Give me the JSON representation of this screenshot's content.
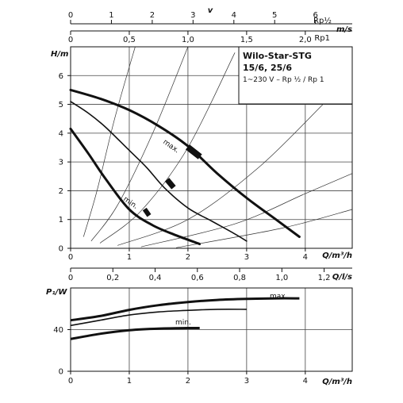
{
  "chart_data": [
    {
      "id": "velocity_scales",
      "type": "scale",
      "rp_half": {
        "label": "Rp½",
        "ticks": [
          "0",
          "1",
          "2",
          "3",
          "4",
          "5",
          "6"
        ],
        "max_value": 6.9
      },
      "rp1": {
        "label": "Rp1",
        "ticks": [
          "0",
          "0,5",
          "1,0",
          "1,5",
          "2,0"
        ],
        "tick_values": [
          0,
          0.5,
          1.0,
          1.5,
          2.0
        ],
        "max_value": 2.4
      },
      "symbol": "v",
      "unit": "m/s"
    },
    {
      "id": "pump_head_curves",
      "type": "line",
      "title": "Wilo-Star-STG",
      "subtitle": "15/6, 25/6",
      "caption": "1~230 V – Rp ½ / Rp 1",
      "ylabel": "H/m",
      "xlabel": "Q/m³/h",
      "xlim": [
        0,
        4.8
      ],
      "ylim": [
        0,
        7
      ],
      "xticks": [
        "0",
        "1",
        "2",
        "3",
        "4"
      ],
      "yticks": [
        "0",
        "1",
        "2",
        "3",
        "4",
        "5",
        "6"
      ],
      "grid": true,
      "series": [
        {
          "name": "max.",
          "x": [
            0,
            0.5,
            1,
            1.5,
            2,
            2.5,
            3,
            3.5,
            3.9
          ],
          "y": [
            5.5,
            5.2,
            4.8,
            4.25,
            3.55,
            2.6,
            1.75,
            1.0,
            0.4
          ]
        },
        {
          "name": "",
          "x": [
            0,
            0.3,
            0.6,
            1.0,
            1.3,
            1.6,
            2.0,
            2.4,
            2.8,
            3.0
          ],
          "y": [
            5.1,
            4.7,
            4.2,
            3.4,
            2.8,
            2.1,
            1.4,
            0.95,
            0.5,
            0.25
          ]
        },
        {
          "name": "min.",
          "x": [
            0,
            0.3,
            0.6,
            1.0,
            1.4,
            1.8,
            2.2
          ],
          "y": [
            4.15,
            3.3,
            2.4,
            1.35,
            0.8,
            0.45,
            0.15
          ]
        }
      ],
      "system_curves": [
        {
          "x": [
            0.22,
            0.45,
            0.75,
            1.1
          ],
          "y": [
            0.4,
            2.0,
            4.5,
            7.0
          ]
        },
        {
          "x": [
            0.35,
            0.8,
            1.4,
            2.0
          ],
          "y": [
            0.25,
            1.5,
            4.0,
            7.0
          ]
        },
        {
          "x": [
            0.5,
            1.2,
            2.0,
            2.8
          ],
          "y": [
            0.18,
            1.3,
            3.5,
            6.8
          ]
        },
        {
          "x": [
            0.8,
            2.0,
            3.2,
            4.3
          ],
          "y": [
            0.1,
            1.0,
            2.8,
            5.0
          ]
        },
        {
          "x": [
            1.2,
            2.8,
            4.0,
            4.8
          ],
          "y": [
            0.05,
            0.85,
            1.9,
            2.6
          ]
        },
        {
          "x": [
            1.8,
            3.6,
            4.8
          ],
          "y": [
            0.02,
            0.7,
            1.35
          ]
        }
      ],
      "markers": [
        {
          "x": 2.1,
          "y": 3.35,
          "angle": 38
        },
        {
          "x": 1.7,
          "y": 2.25,
          "angle": 50
        },
        {
          "x": 1.3,
          "y": 1.25,
          "angle": 55
        }
      ]
    },
    {
      "id": "flow_scale",
      "type": "scale",
      "unit": "Q/l/s",
      "ticks": [
        "0",
        "0,2",
        "0,4",
        "0,6",
        "0,8",
        "1,0",
        "1,2"
      ],
      "tick_values": [
        0,
        0.2,
        0.4,
        0.6,
        0.8,
        1.0,
        1.2
      ],
      "max_value": 1.333
    },
    {
      "id": "power_curves",
      "type": "line",
      "ylabel": "P₁/W",
      "xlabel": "Q/m³/h",
      "xlim": [
        0,
        4.8
      ],
      "ylim": [
        0,
        80
      ],
      "xticks": [
        "0",
        "1",
        "2",
        "3",
        "4"
      ],
      "yticks": [
        "0",
        "40"
      ],
      "ytick_values": [
        0,
        40
      ],
      "grid": true,
      "series": [
        {
          "name": "max.",
          "x": [
            0,
            0.5,
            1,
            1.5,
            2,
            2.5,
            3,
            3.5,
            3.9
          ],
          "y": [
            49,
            53,
            59,
            63.5,
            66.5,
            68.5,
            69.5,
            70,
            70
          ]
        },
        {
          "name": "",
          "x": [
            0,
            0.5,
            1,
            1.5,
            2,
            2.5,
            3
          ],
          "y": [
            44,
            49,
            54,
            57,
            58.5,
            59.5,
            59.5
          ]
        },
        {
          "name": "min.",
          "x": [
            0,
            0.5,
            1,
            1.5,
            2,
            2.2
          ],
          "y": [
            31,
            36,
            39.5,
            41,
            41.5,
            41.5
          ]
        }
      ]
    }
  ]
}
